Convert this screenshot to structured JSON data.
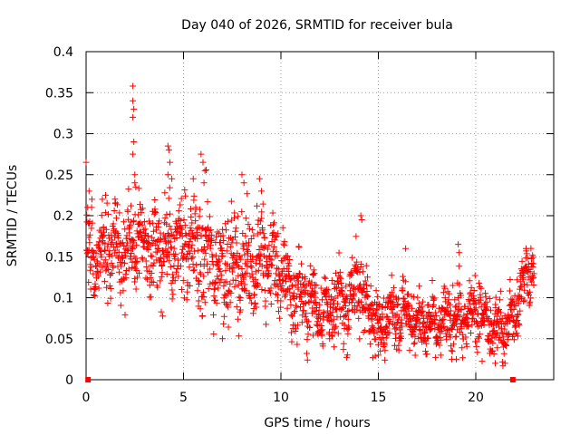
{
  "chart_data": {
    "type": "scatter",
    "title": "Day 040 of 2026, SRMTID for receiver bula",
    "xlabel": "GPS time / hours",
    "ylabel": "SRMTID / TECUs",
    "xlim": [
      0,
      24
    ],
    "ylim": [
      0,
      0.4
    ],
    "x_ticks": [
      0,
      5,
      10,
      15,
      20
    ],
    "x_tick_labels": [
      "0",
      "5",
      "10",
      "15",
      "20"
    ],
    "y_ticks": [
      0,
      0.05,
      0.1,
      0.15,
      0.2,
      0.25,
      0.3,
      0.35,
      0.4
    ],
    "y_tick_labels": [
      "0",
      "0.05",
      "0.1",
      "0.15",
      "0.2",
      "0.25",
      "0.3",
      "0.35",
      "0.4"
    ],
    "grid": true,
    "marker": "+",
    "color": "#ff0000",
    "zero_points_x": [
      0.1,
      21.9
    ],
    "trend": [
      [
        0.0,
        0.14,
        0.035
      ],
      [
        0.5,
        0.15,
        0.03
      ],
      [
        1.0,
        0.165,
        0.03
      ],
      [
        1.5,
        0.16,
        0.03
      ],
      [
        2.0,
        0.15,
        0.035
      ],
      [
        2.5,
        0.16,
        0.035
      ],
      [
        3.0,
        0.17,
        0.03
      ],
      [
        3.5,
        0.16,
        0.03
      ],
      [
        4.0,
        0.165,
        0.035
      ],
      [
        4.5,
        0.165,
        0.035
      ],
      [
        5.0,
        0.16,
        0.035
      ],
      [
        5.5,
        0.16,
        0.035
      ],
      [
        6.0,
        0.15,
        0.04
      ],
      [
        6.5,
        0.145,
        0.035
      ],
      [
        7.0,
        0.14,
        0.035
      ],
      [
        7.5,
        0.14,
        0.035
      ],
      [
        8.0,
        0.14,
        0.035
      ],
      [
        8.5,
        0.145,
        0.035
      ],
      [
        9.0,
        0.145,
        0.035
      ],
      [
        9.5,
        0.145,
        0.03
      ],
      [
        10.0,
        0.13,
        0.03
      ],
      [
        10.5,
        0.11,
        0.03
      ],
      [
        11.0,
        0.1,
        0.025
      ],
      [
        11.5,
        0.095,
        0.025
      ],
      [
        12.0,
        0.085,
        0.02
      ],
      [
        12.5,
        0.085,
        0.025
      ],
      [
        13.0,
        0.09,
        0.025
      ],
      [
        13.5,
        0.095,
        0.025
      ],
      [
        14.0,
        0.12,
        0.03
      ],
      [
        14.5,
        0.08,
        0.025
      ],
      [
        15.0,
        0.07,
        0.02
      ],
      [
        15.5,
        0.08,
        0.02
      ],
      [
        16.0,
        0.085,
        0.025
      ],
      [
        16.5,
        0.08,
        0.02
      ],
      [
        17.0,
        0.07,
        0.02
      ],
      [
        17.5,
        0.065,
        0.02
      ],
      [
        18.0,
        0.065,
        0.02
      ],
      [
        18.5,
        0.07,
        0.02
      ],
      [
        19.0,
        0.08,
        0.025
      ],
      [
        19.5,
        0.07,
        0.02
      ],
      [
        20.0,
        0.085,
        0.025
      ],
      [
        20.5,
        0.075,
        0.02
      ],
      [
        21.0,
        0.065,
        0.02
      ],
      [
        21.5,
        0.06,
        0.02
      ],
      [
        22.0,
        0.08,
        0.025
      ],
      [
        22.5,
        0.12,
        0.025
      ],
      [
        23.0,
        0.145,
        0.015
      ]
    ],
    "spikes": [
      [
        0.0,
        0.265
      ],
      [
        0.15,
        0.23
      ],
      [
        0.3,
        0.22
      ],
      [
        1.0,
        0.225
      ],
      [
        1.5,
        0.215
      ],
      [
        2.4,
        0.358
      ],
      [
        2.4,
        0.34
      ],
      [
        2.45,
        0.33
      ],
      [
        2.4,
        0.32
      ],
      [
        2.45,
        0.29
      ],
      [
        2.4,
        0.275
      ],
      [
        2.5,
        0.25
      ],
      [
        2.5,
        0.24
      ],
      [
        2.55,
        0.235
      ],
      [
        4.2,
        0.285
      ],
      [
        4.25,
        0.28
      ],
      [
        4.3,
        0.265
      ],
      [
        4.2,
        0.25
      ],
      [
        4.4,
        0.245
      ],
      [
        5.5,
        0.245
      ],
      [
        5.9,
        0.275
      ],
      [
        6.0,
        0.265
      ],
      [
        6.1,
        0.255
      ],
      [
        6.05,
        0.24
      ],
      [
        8.0,
        0.25
      ],
      [
        8.1,
        0.24
      ],
      [
        8.9,
        0.245
      ],
      [
        9.0,
        0.23
      ],
      [
        14.1,
        0.2
      ],
      [
        14.15,
        0.195
      ],
      [
        16.4,
        0.16
      ],
      [
        19.1,
        0.165
      ],
      [
        19.15,
        0.155
      ],
      [
        15.0,
        0.03
      ],
      [
        15.1,
        0.035
      ],
      [
        18.2,
        0.03
      ],
      [
        19.0,
        0.025
      ],
      [
        21.0,
        0.02
      ],
      [
        21.5,
        0.02
      ],
      [
        7.0,
        0.05
      ],
      [
        12.5,
        0.05
      ]
    ]
  }
}
